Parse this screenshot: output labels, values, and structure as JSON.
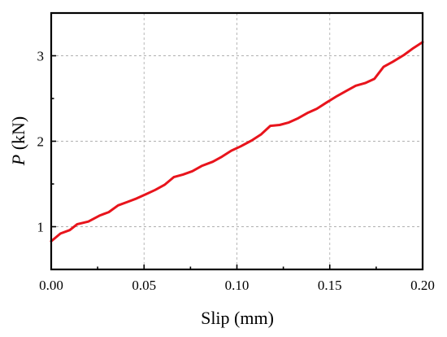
{
  "chart_data": {
    "type": "line",
    "title": "",
    "xlabel": "Slip (mm)",
    "ylabel_italic": "P",
    "ylabel_rest": " (kN)",
    "xlim": [
      0,
      0.2
    ],
    "ylim": [
      0.5,
      3.5
    ],
    "x_ticks": [
      0.0,
      0.05,
      0.1,
      0.15,
      0.2
    ],
    "x_tick_labels": [
      "0.00",
      "0.05",
      "0.10",
      "0.15",
      "0.20"
    ],
    "y_ticks": [
      1,
      2,
      3
    ],
    "y_tick_labels": [
      "1",
      "2",
      "3"
    ],
    "grid": true,
    "line_color": "#e8141c",
    "series": [
      {
        "x": [
          0.0,
          0.005,
          0.01,
          0.014,
          0.02,
          0.026,
          0.031,
          0.036,
          0.041,
          0.046,
          0.051,
          0.056,
          0.061,
          0.066,
          0.071,
          0.076,
          0.081,
          0.087,
          0.092,
          0.097,
          0.102,
          0.108,
          0.113,
          0.118,
          0.123,
          0.128,
          0.133,
          0.138,
          0.143,
          0.148,
          0.154,
          0.159,
          0.164,
          0.169,
          0.174,
          0.179,
          0.184,
          0.19,
          0.195,
          0.2
        ],
        "y": [
          0.83,
          0.92,
          0.96,
          1.03,
          1.06,
          1.13,
          1.17,
          1.25,
          1.29,
          1.33,
          1.38,
          1.43,
          1.49,
          1.58,
          1.61,
          1.65,
          1.71,
          1.76,
          1.82,
          1.89,
          1.94,
          2.01,
          2.08,
          2.18,
          2.19,
          2.22,
          2.27,
          2.33,
          2.38,
          2.45,
          2.53,
          2.59,
          2.65,
          2.68,
          2.73,
          2.87,
          2.93,
          3.01,
          3.09,
          3.16
        ]
      }
    ]
  }
}
